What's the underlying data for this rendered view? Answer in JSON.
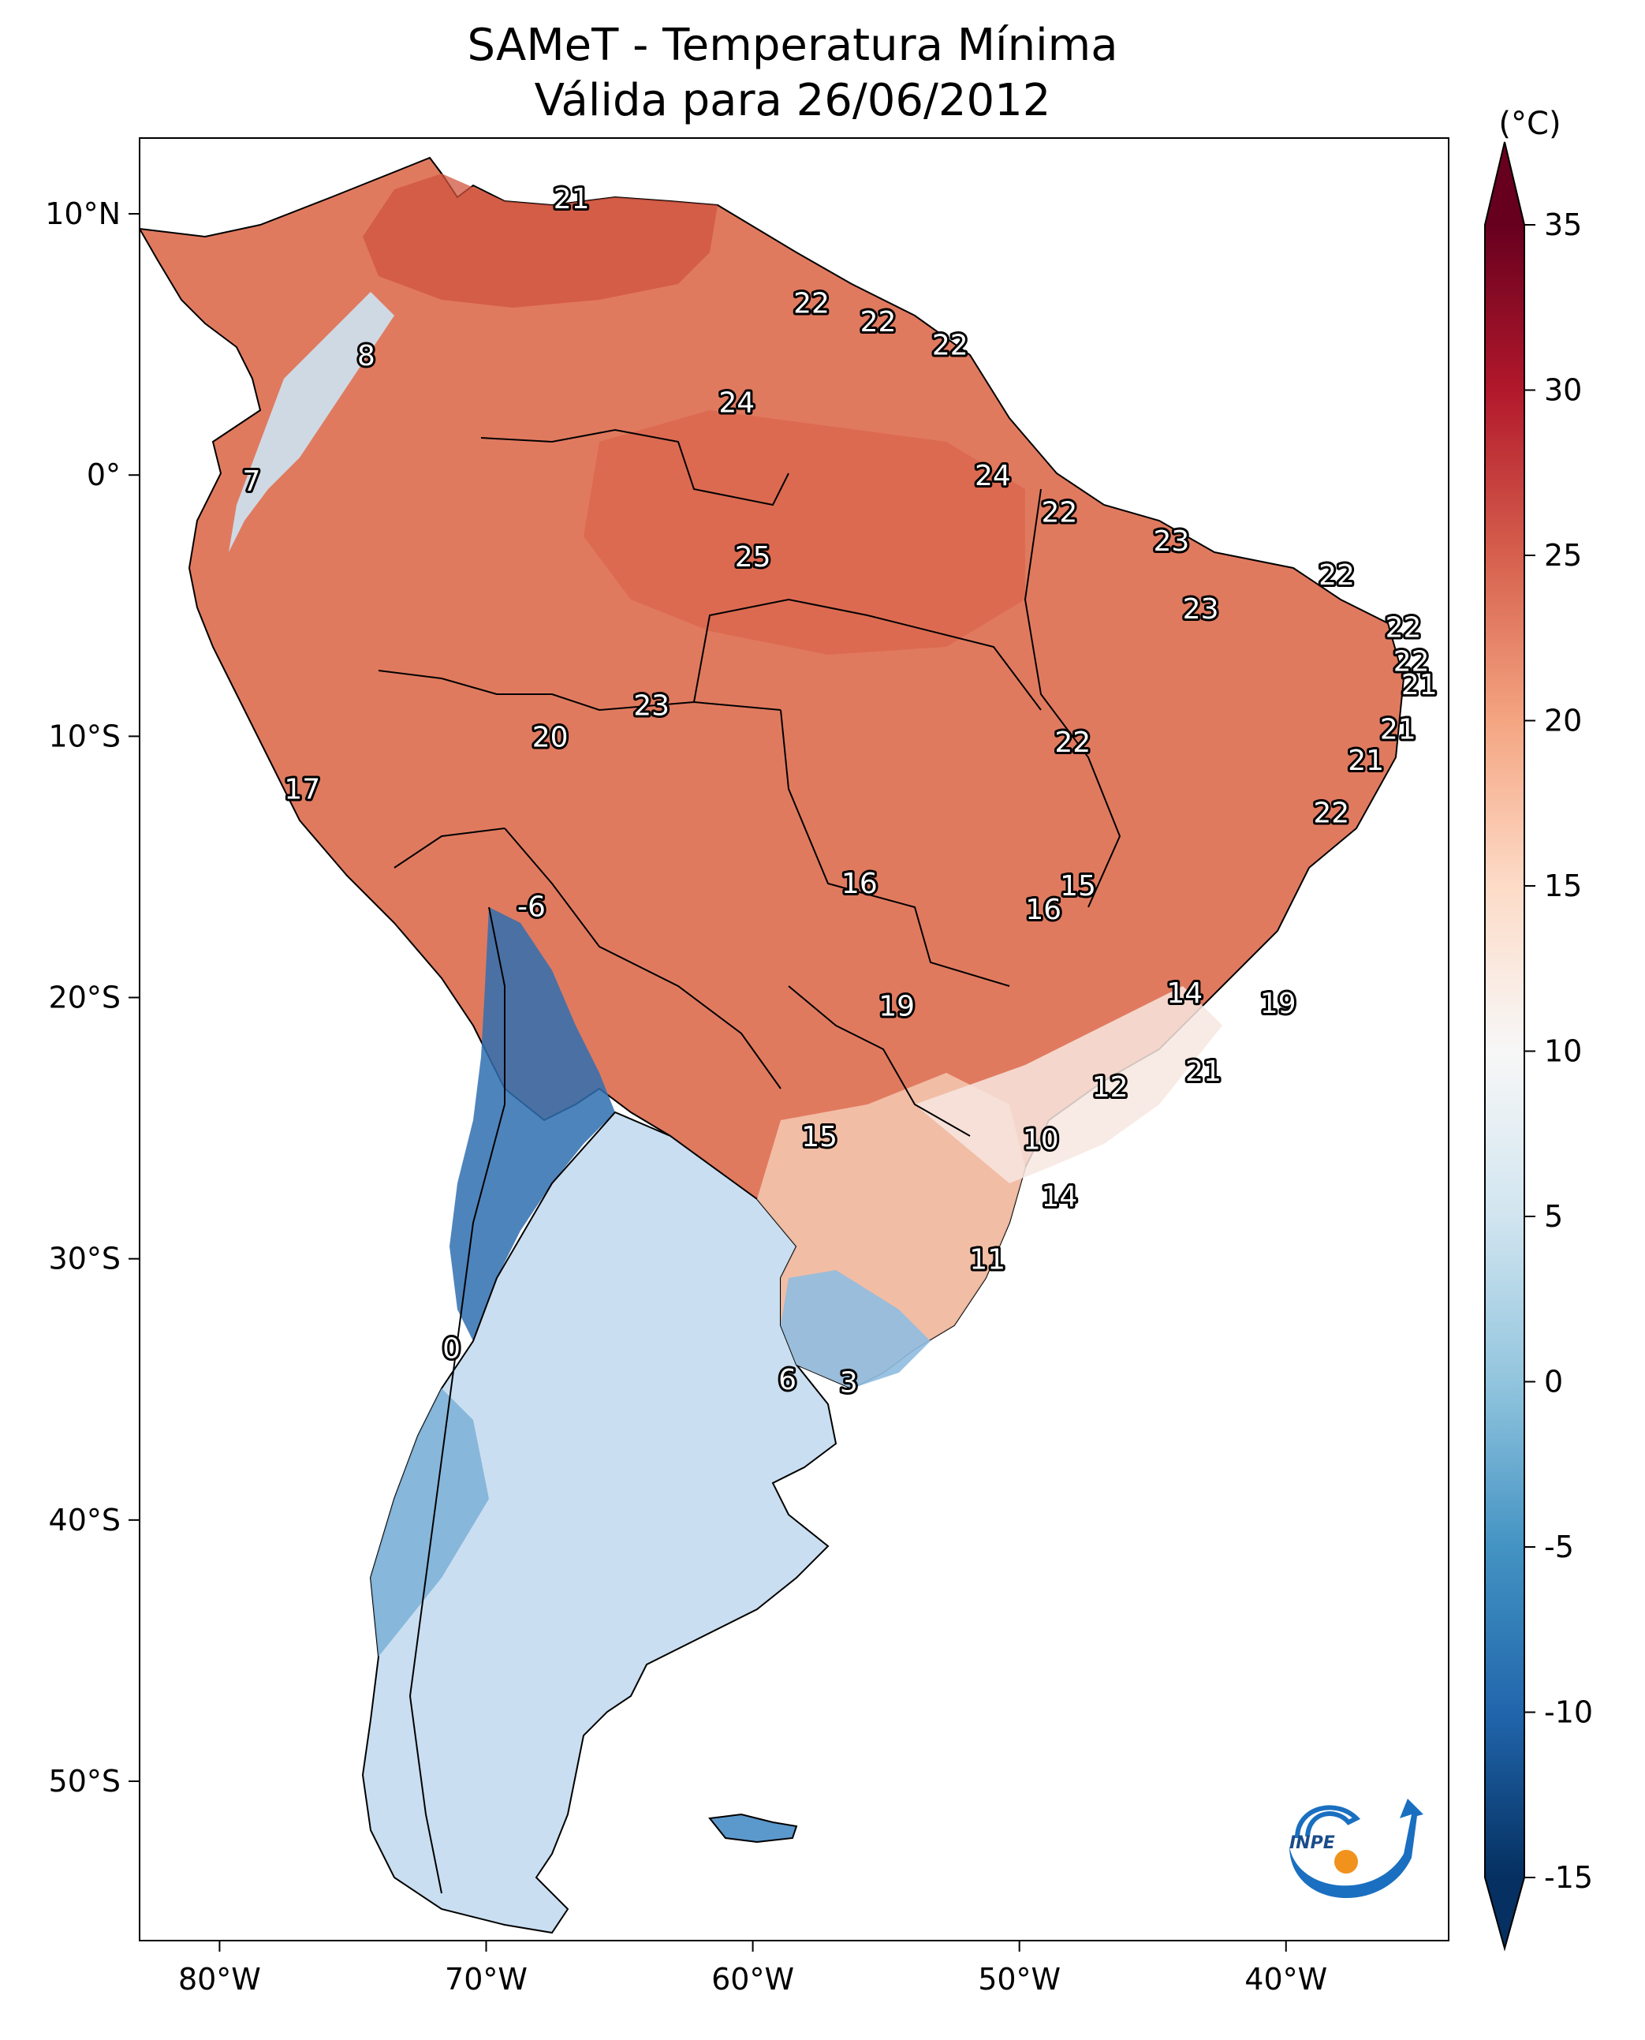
{
  "title": {
    "line1": "SAMeT - Temperatura Mínima",
    "line2": "Válida para 26/06/2012"
  },
  "map": {
    "lon_ticks": [
      {
        "value": -80,
        "label": "80°W"
      },
      {
        "value": -70,
        "label": "70°W"
      },
      {
        "value": -60,
        "label": "60°W"
      },
      {
        "value": -50,
        "label": "50°W"
      },
      {
        "value": -40,
        "label": "40°W"
      }
    ],
    "lat_ticks": [
      {
        "value": 10,
        "label": "10°N"
      },
      {
        "value": 0,
        "label": "0°"
      },
      {
        "value": -10,
        "label": "10°S"
      },
      {
        "value": -20,
        "label": "20°S"
      },
      {
        "value": -30,
        "label": "30°S"
      },
      {
        "value": -40,
        "label": "40°S"
      },
      {
        "value": -50,
        "label": "50°S"
      }
    ],
    "station_labels": [
      {
        "text": "21",
        "lon": -66.8,
        "lat": 10.6
      },
      {
        "text": "22",
        "lon": -57.8,
        "lat": 6.6
      },
      {
        "text": "22",
        "lon": -55.3,
        "lat": 5.9
      },
      {
        "text": "22",
        "lon": -52.6,
        "lat": 5.0
      },
      {
        "text": "8",
        "lon": -74.5,
        "lat": 4.6
      },
      {
        "text": "24",
        "lon": -60.6,
        "lat": 2.8
      },
      {
        "text": "7",
        "lon": -78.8,
        "lat": -0.2
      },
      {
        "text": "24",
        "lon": -51.0,
        "lat": 0.0
      },
      {
        "text": "22",
        "lon": -48.5,
        "lat": -1.4
      },
      {
        "text": "23",
        "lon": -44.3,
        "lat": -2.5
      },
      {
        "text": "25",
        "lon": -60.0,
        "lat": -3.1
      },
      {
        "text": "22",
        "lon": -38.1,
        "lat": -3.8
      },
      {
        "text": "23",
        "lon": -43.2,
        "lat": -5.1
      },
      {
        "text": "22",
        "lon": -35.6,
        "lat": -5.8
      },
      {
        "text": "22",
        "lon": -35.3,
        "lat": -7.1
      },
      {
        "text": "21",
        "lon": -35.0,
        "lat": -8.0
      },
      {
        "text": "23",
        "lon": -63.8,
        "lat": -8.8
      },
      {
        "text": "20",
        "lon": -67.6,
        "lat": -10.0
      },
      {
        "text": "22",
        "lon": -48.0,
        "lat": -10.2
      },
      {
        "text": "21",
        "lon": -35.8,
        "lat": -9.7
      },
      {
        "text": "21",
        "lon": -37.0,
        "lat": -10.9
      },
      {
        "text": "17",
        "lon": -76.9,
        "lat": -12.0
      },
      {
        "text": "22",
        "lon": -38.3,
        "lat": -12.9
      },
      {
        "text": "16",
        "lon": -56.0,
        "lat": -15.6
      },
      {
        "text": "15",
        "lon": -47.8,
        "lat": -15.7
      },
      {
        "text": "-6",
        "lon": -68.3,
        "lat": -16.5
      },
      {
        "text": "16",
        "lon": -49.1,
        "lat": -16.6
      },
      {
        "text": "14",
        "lon": -43.8,
        "lat": -19.8
      },
      {
        "text": "19",
        "lon": -54.6,
        "lat": -20.3
      },
      {
        "text": "19",
        "lon": -40.3,
        "lat": -20.2
      },
      {
        "text": "21",
        "lon": -43.1,
        "lat": -22.8
      },
      {
        "text": "12",
        "lon": -46.6,
        "lat": -23.4
      },
      {
        "text": "15",
        "lon": -57.5,
        "lat": -25.3
      },
      {
        "text": "10",
        "lon": -49.2,
        "lat": -25.4
      },
      {
        "text": "14",
        "lon": -48.5,
        "lat": -27.6
      },
      {
        "text": "11",
        "lon": -51.2,
        "lat": -30.0
      },
      {
        "text": "0",
        "lon": -71.3,
        "lat": -33.4
      },
      {
        "text": "6",
        "lon": -58.7,
        "lat": -34.6
      },
      {
        "text": "3",
        "lon": -56.4,
        "lat": -34.7
      }
    ]
  },
  "colorbar": {
    "unit_label": "(°C)",
    "ticks": [
      {
        "value": 35,
        "label": "35"
      },
      {
        "value": 30,
        "label": "30"
      },
      {
        "value": 25,
        "label": "25"
      },
      {
        "value": 20,
        "label": "20"
      },
      {
        "value": 15,
        "label": "15"
      },
      {
        "value": 10,
        "label": "10"
      },
      {
        "value": 5,
        "label": "5"
      },
      {
        "value": 0,
        "label": "0"
      },
      {
        "value": -5,
        "label": "-5"
      },
      {
        "value": -10,
        "label": "-10"
      },
      {
        "value": -15,
        "label": "-15"
      }
    ],
    "range": [
      -15,
      35
    ],
    "extend": "both",
    "palette": [
      "#053061",
      "#2166ac",
      "#4393c3",
      "#92c5de",
      "#d1e5f0",
      "#f7f7f7",
      "#fddbc7",
      "#f4a582",
      "#d6604d",
      "#b2182b",
      "#67001f"
    ]
  },
  "logo": {
    "text": "INPE",
    "arrow_color": "#1a6fc0",
    "dot_color": "#f0921c"
  }
}
